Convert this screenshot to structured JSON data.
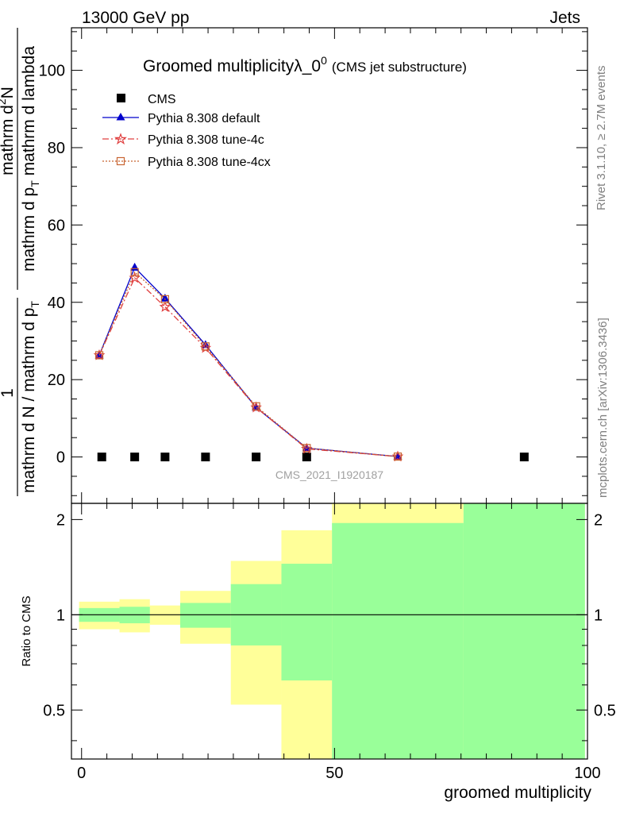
{
  "header": {
    "energy_label": "13000 GeV pp",
    "category_label": "Jets"
  },
  "side_labels": {
    "rivet": "Rivet 3.1.10, ≥ 2.7M events",
    "mcplots": "mcplots.cern.ch [arXiv:1306.3436]"
  },
  "watermark": "CMS_2021_I1920187",
  "chart_data": [
    {
      "type": "line",
      "title": "Groomed multiplicityλ_0",
      "title_superscript": "0",
      "title_suffix": "(CMS jet substructure)",
      "ylabel_numerator": "mathrm d²N",
      "ylabel_denominator": "mathrm d N / mathrm d p",
      "ylabel_parts": {
        "num_pre": "mathrm d",
        "num_sup": "2",
        "num_post": "N",
        "num_left": "1",
        "frac_num": "mathrm d",
        "frac_num_sup": "2",
        "frac_num_rest": "N",
        "frac_den_a": "mathrm d p",
        "frac_den_a_sub": "T",
        "frac_den_b": " mathrm d lambda",
        "left_den_a": "mathrm d N / mathrm d p",
        "left_den_a_sub": "T"
      },
      "xlabel": "groomed multiplicity",
      "xlim": [
        -2,
        100
      ],
      "ylim": [
        -12,
        111
      ],
      "yticks": [
        0,
        20,
        40,
        60,
        80,
        100
      ],
      "xticks": [
        0,
        50,
        100
      ],
      "legend_position": "top-left",
      "legend": [
        "CMS",
        "Pythia 8.308 default",
        "Pythia 8.308 tune-4c",
        "Pythia 8.308 tune-4cx"
      ],
      "series": [
        {
          "name": "CMS",
          "style": "square-marker",
          "color": "#000000",
          "x": [
            4,
            10.5,
            16.5,
            24.5,
            34.5,
            44.5,
            87.5
          ],
          "y": [
            0,
            0,
            0,
            0,
            0,
            0,
            0
          ]
        },
        {
          "name": "Pythia 8.308 default",
          "style": "solid-triangle",
          "color": "#0000cc",
          "x": [
            3.5,
            10.5,
            16.5,
            24.5,
            34.5,
            44.5,
            62.5
          ],
          "y": [
            26.3,
            49.0,
            41.0,
            29.0,
            12.8,
            2.3,
            0.1
          ]
        },
        {
          "name": "Pythia 8.308 tune-4c",
          "style": "dashdot-star",
          "color": "#e04040",
          "x": [
            3.5,
            10.5,
            16.5,
            24.5,
            34.5,
            44.5,
            62.5
          ],
          "y": [
            26.3,
            46.3,
            38.8,
            28.2,
            12.8,
            2.1,
            0.1
          ]
        },
        {
          "name": "Pythia 8.308 tune-4cx",
          "style": "dotted-open-square",
          "color": "#c86432",
          "x": [
            3.5,
            10.5,
            16.5,
            24.5,
            34.5,
            44.5,
            62.5
          ],
          "y": [
            26.3,
            47.8,
            40.8,
            28.6,
            13.1,
            2.3,
            0.1
          ]
        }
      ]
    },
    {
      "type": "area",
      "title": "",
      "xlabel": "groomed multiplicity",
      "ylabel": "Ratio to CMS",
      "xlim": [
        -2,
        100
      ],
      "ylim": [
        0.35,
        2.25
      ],
      "yticks": [
        0.5,
        1,
        2
      ],
      "xticks": [
        0,
        50,
        100
      ],
      "reference_line": 1,
      "bands": [
        {
          "name": "stat",
          "color": "#99ff99",
          "bins": [
            {
              "x0": -0.5,
              "x1": 7.5,
              "lo": 0.95,
              "hi": 1.05
            },
            {
              "x0": 7.5,
              "x1": 13.5,
              "lo": 0.94,
              "hi": 1.06
            },
            {
              "x0": 13.5,
              "x1": 19.5,
              "lo": 1.0,
              "hi": 1.0
            },
            {
              "x0": 19.5,
              "x1": 29.5,
              "lo": 0.91,
              "hi": 1.09
            },
            {
              "x0": 29.5,
              "x1": 39.5,
              "lo": 0.8,
              "hi": 1.25
            },
            {
              "x0": 39.5,
              "x1": 49.5,
              "lo": 0.62,
              "hi": 1.45
            },
            {
              "x0": 49.5,
              "x1": 75.5,
              "lo": 0.35,
              "hi": 1.95
            },
            {
              "x0": 75.5,
              "x1": 99.5,
              "lo": 0.35,
              "hi": 2.25
            }
          ]
        },
        {
          "name": "stat+syst",
          "color": "#ffff99",
          "bins": [
            {
              "x0": -0.5,
              "x1": 7.5,
              "lo": 0.9,
              "hi": 1.1
            },
            {
              "x0": 7.5,
              "x1": 13.5,
              "lo": 0.88,
              "hi": 1.12
            },
            {
              "x0": 13.5,
              "x1": 19.5,
              "lo": 0.93,
              "hi": 1.07
            },
            {
              "x0": 19.5,
              "x1": 29.5,
              "lo": 0.81,
              "hi": 1.19
            },
            {
              "x0": 29.5,
              "x1": 39.5,
              "lo": 0.52,
              "hi": 1.48
            },
            {
              "x0": 39.5,
              "x1": 49.5,
              "lo": 0.35,
              "hi": 1.85
            },
            {
              "x0": 49.5,
              "x1": 75.5,
              "lo": 0.35,
              "hi": 2.25
            },
            {
              "x0": 75.5,
              "x1": 99.5,
              "lo": 0.35,
              "hi": 2.25
            }
          ]
        }
      ]
    }
  ]
}
